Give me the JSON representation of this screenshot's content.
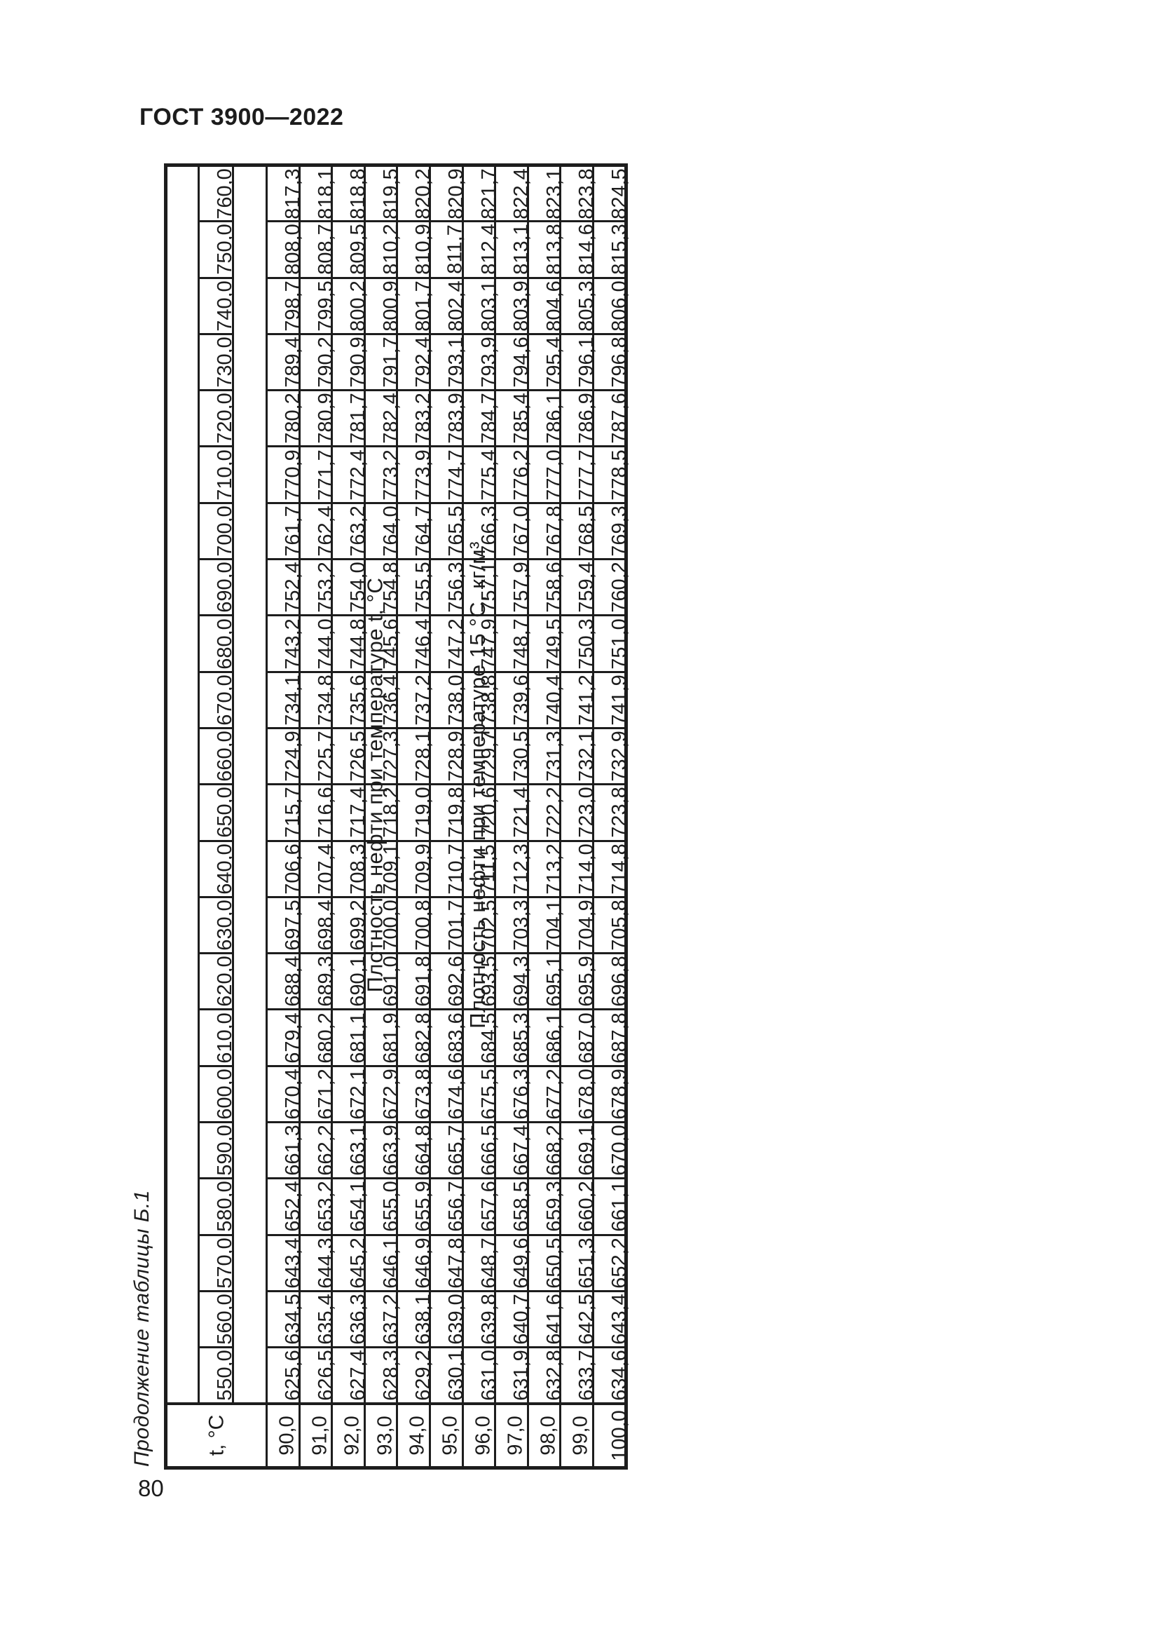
{
  "page": {
    "standard": "ГОСТ 3900—2022",
    "caption": "Продолжение таблицы Б.1",
    "page_number": "80"
  },
  "table": {
    "corner_label": "t, °C",
    "density_t_header": "Плотность нефти при температуре t, °C",
    "density_15_header": "Плотность нефти при температуре 15 °С, кг/м³",
    "t_values": [
      "90,0",
      "91,0",
      "92,0",
      "93,0",
      "94,0",
      "95,0",
      "96,0",
      "97,0",
      "98,0",
      "99,0",
      "100,0"
    ],
    "rows": [
      {
        "density_t": "760,0",
        "density_15_values": [
          "817,3",
          "818,1",
          "818,8",
          "819,5",
          "820,2",
          "820,9",
          "821,7",
          "822,4",
          "823,1",
          "823,8",
          "824,5"
        ]
      },
      {
        "density_t": "750,0",
        "density_15_values": [
          "808,0",
          "808,7",
          "809,5",
          "810,2",
          "810,9",
          "811,7",
          "812,4",
          "813,1",
          "813,8",
          "814,6",
          "815,3"
        ]
      },
      {
        "density_t": "740,0",
        "density_15_values": [
          "798,7",
          "799,5",
          "800,2",
          "800,9",
          "801,7",
          "802,4",
          "803,1",
          "803,9",
          "804,6",
          "805,3",
          "806,0"
        ]
      },
      {
        "density_t": "730,0",
        "density_15_values": [
          "789,4",
          "790,2",
          "790,9",
          "791,7",
          "792,4",
          "793,1",
          "793,9",
          "794,6",
          "795,4",
          "796,1",
          "796,8"
        ]
      },
      {
        "density_t": "720,0",
        "density_15_values": [
          "780,2",
          "780,9",
          "781,7",
          "782,4",
          "783,2",
          "783,9",
          "784,7",
          "785,4",
          "786,1",
          "786,9",
          "787,6"
        ]
      },
      {
        "density_t": "710,0",
        "density_15_values": [
          "770,9",
          "771,7",
          "772,4",
          "773,2",
          "773,9",
          "774,7",
          "775,4",
          "776,2",
          "777,0",
          "777,7",
          "778,5"
        ]
      },
      {
        "density_t": "700,0",
        "density_15_values": [
          "761,7",
          "762,4",
          "763,2",
          "764,0",
          "764,7",
          "765,5",
          "766,3",
          "767,0",
          "767,8",
          "768,5",
          "769,3"
        ]
      },
      {
        "density_t": "690,0",
        "density_15_values": [
          "752,4",
          "753,2",
          "754,0",
          "754,8",
          "755,5",
          "756,3",
          "757,1",
          "757,9",
          "758,6",
          "759,4",
          "760,2"
        ]
      },
      {
        "density_t": "680,0",
        "density_15_values": [
          "743,2",
          "744,0",
          "744,8",
          "745,6",
          "746,4",
          "747,2",
          "747,9",
          "748,7",
          "749,5",
          "750,3",
          "751,0"
        ]
      },
      {
        "density_t": "670,0",
        "density_15_values": [
          "734,1",
          "734,8",
          "735,6",
          "736,4",
          "737,2",
          "738,0",
          "738,8",
          "739,6",
          "740,4",
          "741,2",
          "741,9"
        ]
      },
      {
        "density_t": "660,0",
        "density_15_values": [
          "724,9",
          "725,7",
          "726,5",
          "727,3",
          "728,1",
          "728,9",
          "729,7",
          "730,5",
          "731,3",
          "732,1",
          "732,9"
        ]
      },
      {
        "density_t": "650,0",
        "density_15_values": [
          "715,7",
          "716,6",
          "717,4",
          "718,2",
          "719,0",
          "719,8",
          "720,6",
          "721,4",
          "722,2",
          "723,0",
          "723,8"
        ]
      },
      {
        "density_t": "640,0",
        "density_15_values": [
          "706,6",
          "707,4",
          "708,3",
          "709,1",
          "709,9",
          "710,7",
          "711,5",
          "712,3",
          "713,2",
          "714,0",
          "714,8"
        ]
      },
      {
        "density_t": "630,0",
        "density_15_values": [
          "697,5",
          "698,4",
          "699,2",
          "700,0",
          "700,8",
          "701,7",
          "702,5",
          "703,3",
          "704,1",
          "704,9",
          "705,8"
        ]
      },
      {
        "density_t": "620,0",
        "density_15_values": [
          "688,4",
          "689,3",
          "690,1",
          "691,0",
          "691,8",
          "692,6",
          "693,5",
          "694,3",
          "695,1",
          "695,9",
          "696,8"
        ]
      },
      {
        "density_t": "610,0",
        "density_15_values": [
          "679,4",
          "680,2",
          "681,1",
          "681,9",
          "682,8",
          "683,6",
          "684,5",
          "685,3",
          "686,1",
          "687,0",
          "687,8"
        ]
      },
      {
        "density_t": "600,0",
        "density_15_values": [
          "670,4",
          "671,2",
          "672,1",
          "672,9",
          "673,8",
          "674,6",
          "675,5",
          "676,3",
          "677,2",
          "678,0",
          "678,9"
        ]
      },
      {
        "density_t": "590,0",
        "density_15_values": [
          "661,3",
          "662,2",
          "663,1",
          "663,9",
          "664,8",
          "665,7",
          "666,5",
          "667,4",
          "668,2",
          "669,1",
          "670,0"
        ]
      },
      {
        "density_t": "580,0",
        "density_15_values": [
          "652,4",
          "653,2",
          "654,1",
          "655,0",
          "655,9",
          "656,7",
          "657,6",
          "658,5",
          "659,3",
          "660,2",
          "661,1"
        ]
      },
      {
        "density_t": "570,0",
        "density_15_values": [
          "643,4",
          "644,3",
          "645,2",
          "646,1",
          "646,9",
          "647,8",
          "648,7",
          "649,6",
          "650,5",
          "651,3",
          "652,2"
        ]
      },
      {
        "density_t": "560,0",
        "density_15_values": [
          "634,5",
          "635,4",
          "636,3",
          "637,2",
          "638,1",
          "639,0",
          "639,8",
          "640,7",
          "641,6",
          "642,5",
          "643,4"
        ]
      },
      {
        "density_t": "550,0",
        "density_15_values": [
          "625,6",
          "626,5",
          "627,4",
          "628,3",
          "629,2",
          "630,1",
          "631,0",
          "631,9",
          "632,8",
          "633,7",
          "634,6"
        ]
      }
    ]
  }
}
